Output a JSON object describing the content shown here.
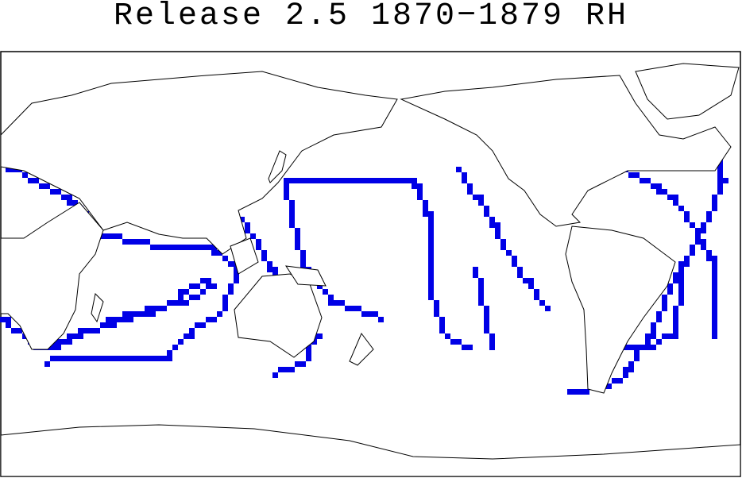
{
  "title": "Release 2.5 1870−1879 RH"
}
